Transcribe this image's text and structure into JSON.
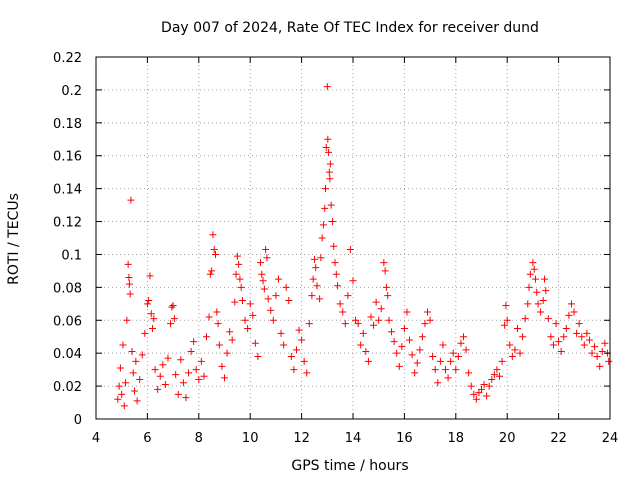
{
  "chart_data": {
    "type": "scatter",
    "title": "Day 007 of 2024, Rate Of TEC Index for receiver dund",
    "xlabel": "GPS time / hours",
    "ylabel": "ROTI / TECUs",
    "xlim": [
      4,
      24
    ],
    "ylim": [
      0,
      0.22
    ],
    "x_ticks": [
      4,
      6,
      8,
      10,
      12,
      14,
      16,
      18,
      20,
      22,
      24
    ],
    "y_ticks": [
      0,
      0.02,
      0.04,
      0.06,
      0.08,
      0.1,
      0.12,
      0.14,
      0.16,
      0.18,
      0.2,
      0.22
    ],
    "grid": true,
    "marker": "+",
    "color": "#ff0000",
    "series": [
      {
        "name": "ROTI",
        "sampling": "dense ROTI measurements from ~4.8 h to 24 h; representative points listed",
        "points": [
          [
            4.85,
            0.012
          ],
          [
            4.9,
            0.02
          ],
          [
            4.95,
            0.031
          ],
          [
            5.0,
            0.015
          ],
          [
            5.05,
            0.045
          ],
          [
            5.1,
            0.008
          ],
          [
            5.15,
            0.022
          ],
          [
            5.2,
            0.06
          ],
          [
            5.25,
            0.094
          ],
          [
            5.28,
            0.086
          ],
          [
            5.3,
            0.082
          ],
          [
            5.33,
            0.076
          ],
          [
            5.36,
            0.133
          ],
          [
            5.4,
            0.041
          ],
          [
            5.45,
            0.028
          ],
          [
            5.5,
            0.017
          ],
          [
            5.55,
            0.035
          ],
          [
            5.6,
            0.011
          ],
          [
            5.7,
            0.024
          ],
          [
            5.8,
            0.039
          ],
          [
            5.9,
            0.052
          ],
          [
            6.0,
            0.07
          ],
          [
            6.05,
            0.072
          ],
          [
            6.1,
            0.087
          ],
          [
            6.15,
            0.064
          ],
          [
            6.2,
            0.055
          ],
          [
            6.25,
            0.061
          ],
          [
            6.3,
            0.03
          ],
          [
            6.4,
            0.018
          ],
          [
            6.5,
            0.026
          ],
          [
            6.6,
            0.033
          ],
          [
            6.7,
            0.021
          ],
          [
            6.8,
            0.037
          ],
          [
            6.9,
            0.058
          ],
          [
            6.95,
            0.068
          ],
          [
            7.0,
            0.069
          ],
          [
            7.05,
            0.061
          ],
          [
            7.1,
            0.027
          ],
          [
            7.2,
            0.015
          ],
          [
            7.3,
            0.036
          ],
          [
            7.4,
            0.022
          ],
          [
            7.5,
            0.013
          ],
          [
            7.6,
            0.028
          ],
          [
            7.7,
            0.041
          ],
          [
            7.8,
            0.047
          ],
          [
            7.9,
            0.03
          ],
          [
            8.0,
            0.024
          ],
          [
            8.1,
            0.035
          ],
          [
            8.2,
            0.026
          ],
          [
            8.3,
            0.05
          ],
          [
            8.4,
            0.062
          ],
          [
            8.45,
            0.088
          ],
          [
            8.5,
            0.09
          ],
          [
            8.55,
            0.112
          ],
          [
            8.6,
            0.103
          ],
          [
            8.65,
            0.1
          ],
          [
            8.7,
            0.065
          ],
          [
            8.75,
            0.058
          ],
          [
            8.8,
            0.045
          ],
          [
            8.9,
            0.032
          ],
          [
            9.0,
            0.025
          ],
          [
            9.1,
            0.04
          ],
          [
            9.2,
            0.053
          ],
          [
            9.3,
            0.048
          ],
          [
            9.4,
            0.071
          ],
          [
            9.45,
            0.088
          ],
          [
            9.5,
            0.099
          ],
          [
            9.55,
            0.094
          ],
          [
            9.6,
            0.085
          ],
          [
            9.65,
            0.08
          ],
          [
            9.7,
            0.072
          ],
          [
            9.8,
            0.06
          ],
          [
            9.9,
            0.055
          ],
          [
            10.0,
            0.07
          ],
          [
            10.1,
            0.063
          ],
          [
            10.2,
            0.046
          ],
          [
            10.3,
            0.038
          ],
          [
            10.4,
            0.095
          ],
          [
            10.45,
            0.088
          ],
          [
            10.5,
            0.084
          ],
          [
            10.55,
            0.079
          ],
          [
            10.6,
            0.103
          ],
          [
            10.65,
            0.098
          ],
          [
            10.7,
            0.073
          ],
          [
            10.8,
            0.066
          ],
          [
            10.9,
            0.06
          ],
          [
            11.0,
            0.075
          ],
          [
            11.1,
            0.085
          ],
          [
            11.2,
            0.052
          ],
          [
            11.3,
            0.045
          ],
          [
            11.4,
            0.08
          ],
          [
            11.5,
            0.072
          ],
          [
            11.6,
            0.038
          ],
          [
            11.7,
            0.03
          ],
          [
            11.8,
            0.042
          ],
          [
            11.9,
            0.054
          ],
          [
            12.0,
            0.048
          ],
          [
            12.1,
            0.035
          ],
          [
            12.2,
            0.028
          ],
          [
            12.3,
            0.058
          ],
          [
            12.4,
            0.075
          ],
          [
            12.45,
            0.085
          ],
          [
            12.5,
            0.097
          ],
          [
            12.55,
            0.092
          ],
          [
            12.6,
            0.081
          ],
          [
            12.7,
            0.073
          ],
          [
            12.75,
            0.098
          ],
          [
            12.8,
            0.11
          ],
          [
            12.85,
            0.118
          ],
          [
            12.9,
            0.128
          ],
          [
            12.93,
            0.14
          ],
          [
            12.96,
            0.165
          ],
          [
            13.0,
            0.202
          ],
          [
            13.02,
            0.17
          ],
          [
            13.05,
            0.162
          ],
          [
            13.08,
            0.15
          ],
          [
            13.1,
            0.146
          ],
          [
            13.12,
            0.155
          ],
          [
            13.15,
            0.13
          ],
          [
            13.2,
            0.12
          ],
          [
            13.25,
            0.105
          ],
          [
            13.3,
            0.095
          ],
          [
            13.35,
            0.088
          ],
          [
            13.4,
            0.081
          ],
          [
            13.5,
            0.07
          ],
          [
            13.6,
            0.065
          ],
          [
            13.7,
            0.058
          ],
          [
            13.8,
            0.075
          ],
          [
            13.9,
            0.103
          ],
          [
            14.0,
            0.084
          ],
          [
            14.1,
            0.06
          ],
          [
            14.2,
            0.058
          ],
          [
            14.3,
            0.045
          ],
          [
            14.4,
            0.052
          ],
          [
            14.5,
            0.041
          ],
          [
            14.6,
            0.035
          ],
          [
            14.7,
            0.062
          ],
          [
            14.8,
            0.057
          ],
          [
            14.9,
            0.071
          ],
          [
            15.0,
            0.06
          ],
          [
            15.1,
            0.067
          ],
          [
            15.2,
            0.095
          ],
          [
            15.25,
            0.09
          ],
          [
            15.3,
            0.08
          ],
          [
            15.35,
            0.075
          ],
          [
            15.4,
            0.06
          ],
          [
            15.5,
            0.053
          ],
          [
            15.6,
            0.047
          ],
          [
            15.7,
            0.04
          ],
          [
            15.8,
            0.032
          ],
          [
            15.9,
            0.044
          ],
          [
            16.0,
            0.055
          ],
          [
            16.1,
            0.065
          ],
          [
            16.2,
            0.048
          ],
          [
            16.3,
            0.039
          ],
          [
            16.4,
            0.028
          ],
          [
            16.5,
            0.034
          ],
          [
            16.6,
            0.042
          ],
          [
            16.7,
            0.05
          ],
          [
            16.8,
            0.058
          ],
          [
            16.9,
            0.065
          ],
          [
            17.0,
            0.06
          ],
          [
            17.1,
            0.038
          ],
          [
            17.2,
            0.03
          ],
          [
            17.3,
            0.022
          ],
          [
            17.4,
            0.035
          ],
          [
            17.5,
            0.045
          ],
          [
            17.6,
            0.03
          ],
          [
            17.7,
            0.025
          ],
          [
            17.8,
            0.035
          ],
          [
            17.9,
            0.04
          ],
          [
            18.0,
            0.03
          ],
          [
            18.1,
            0.038
          ],
          [
            18.2,
            0.046
          ],
          [
            18.3,
            0.05
          ],
          [
            18.4,
            0.042
          ],
          [
            18.5,
            0.028
          ],
          [
            18.6,
            0.02
          ],
          [
            18.7,
            0.015
          ],
          [
            18.8,
            0.012
          ],
          [
            18.9,
            0.016
          ],
          [
            19.0,
            0.018
          ],
          [
            19.1,
            0.021
          ],
          [
            19.2,
            0.014
          ],
          [
            19.3,
            0.02
          ],
          [
            19.4,
            0.024
          ],
          [
            19.5,
            0.027
          ],
          [
            19.6,
            0.03
          ],
          [
            19.7,
            0.026
          ],
          [
            19.8,
            0.035
          ],
          [
            19.9,
            0.057
          ],
          [
            19.95,
            0.069
          ],
          [
            20.0,
            0.06
          ],
          [
            20.1,
            0.045
          ],
          [
            20.2,
            0.038
          ],
          [
            20.3,
            0.042
          ],
          [
            20.4,
            0.055
          ],
          [
            20.5,
            0.04
          ],
          [
            20.6,
            0.05
          ],
          [
            20.7,
            0.061
          ],
          [
            20.8,
            0.07
          ],
          [
            20.85,
            0.08
          ],
          [
            20.9,
            0.088
          ],
          [
            21.0,
            0.095
          ],
          [
            21.05,
            0.091
          ],
          [
            21.1,
            0.085
          ],
          [
            21.15,
            0.077
          ],
          [
            21.2,
            0.07
          ],
          [
            21.3,
            0.065
          ],
          [
            21.4,
            0.072
          ],
          [
            21.45,
            0.085
          ],
          [
            21.5,
            0.078
          ],
          [
            21.6,
            0.061
          ],
          [
            21.7,
            0.05
          ],
          [
            21.8,
            0.045
          ],
          [
            21.9,
            0.058
          ],
          [
            22.0,
            0.047
          ],
          [
            22.1,
            0.041
          ],
          [
            22.2,
            0.05
          ],
          [
            22.3,
            0.055
          ],
          [
            22.4,
            0.063
          ],
          [
            22.5,
            0.07
          ],
          [
            22.6,
            0.065
          ],
          [
            22.7,
            0.052
          ],
          [
            22.8,
            0.058
          ],
          [
            22.9,
            0.05
          ],
          [
            23.0,
            0.045
          ],
          [
            23.1,
            0.052
          ],
          [
            23.2,
            0.048
          ],
          [
            23.3,
            0.04
          ],
          [
            23.4,
            0.044
          ],
          [
            23.5,
            0.038
          ],
          [
            23.6,
            0.032
          ],
          [
            23.7,
            0.041
          ],
          [
            23.8,
            0.046
          ],
          [
            23.9,
            0.04
          ],
          [
            23.95,
            0.035
          ]
        ]
      }
    ]
  }
}
